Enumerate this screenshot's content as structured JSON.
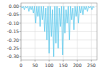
{
  "chart_data": {
    "type": "line",
    "color": "#5bc8ec",
    "grid": true,
    "x": [
      0,
      4,
      8,
      12,
      16,
      20,
      24,
      28,
      32,
      36,
      40,
      44,
      48,
      52,
      56,
      60,
      64,
      68,
      72,
      76,
      80,
      84,
      88,
      92,
      96,
      100,
      104,
      108,
      112,
      116,
      120,
      124,
      128,
      132,
      136,
      140,
      144,
      148,
      152,
      156,
      160,
      164,
      168,
      172,
      176,
      180,
      184,
      188,
      192,
      196,
      200,
      204,
      208,
      212,
      216,
      220,
      224,
      228,
      232,
      236,
      240,
      244,
      248,
      252,
      256,
      260
    ],
    "values": [
      0,
      -0.01,
      0,
      -0.02,
      0,
      -0.01,
      0,
      -0.03,
      0,
      -0.02,
      0,
      -0.04,
      0,
      -0.1,
      0,
      -0.06,
      0,
      -0.12,
      0,
      -0.08,
      0,
      -0.15,
      -0.01,
      -0.2,
      0,
      -0.28,
      0,
      -0.18,
      -0.02,
      -0.3,
      0,
      -0.22,
      0,
      -0.25,
      -0.01,
      -0.12,
      0,
      -0.29,
      0,
      -0.16,
      -0.02,
      -0.1,
      0,
      -0.2,
      0,
      -0.08,
      -0.01,
      -0.14,
      0,
      -0.06,
      0,
      -0.1,
      0,
      -0.04,
      0,
      -0.05,
      0,
      -0.02,
      0,
      -0.03,
      0,
      -0.01,
      0,
      -0.02,
      0,
      -0.01
    ],
    "xlim": [
      0,
      270
    ],
    "xticks": [
      0,
      50,
      100,
      150,
      200,
      250
    ],
    "ylim": [
      -0.32,
      0.02
    ],
    "yticks": [
      {
        "value": 0,
        "label": "0.00"
      },
      {
        "value": -0.05,
        "label": "-0.05"
      },
      {
        "value": -0.1,
        "label": "-0.10"
      },
      {
        "value": -0.15,
        "label": "-0.15"
      },
      {
        "value": -0.2,
        "label": "-0.20"
      },
      {
        "value": -0.25,
        "label": "-0.25"
      },
      {
        "value": -0.3,
        "label": "-0.30"
      }
    ]
  }
}
